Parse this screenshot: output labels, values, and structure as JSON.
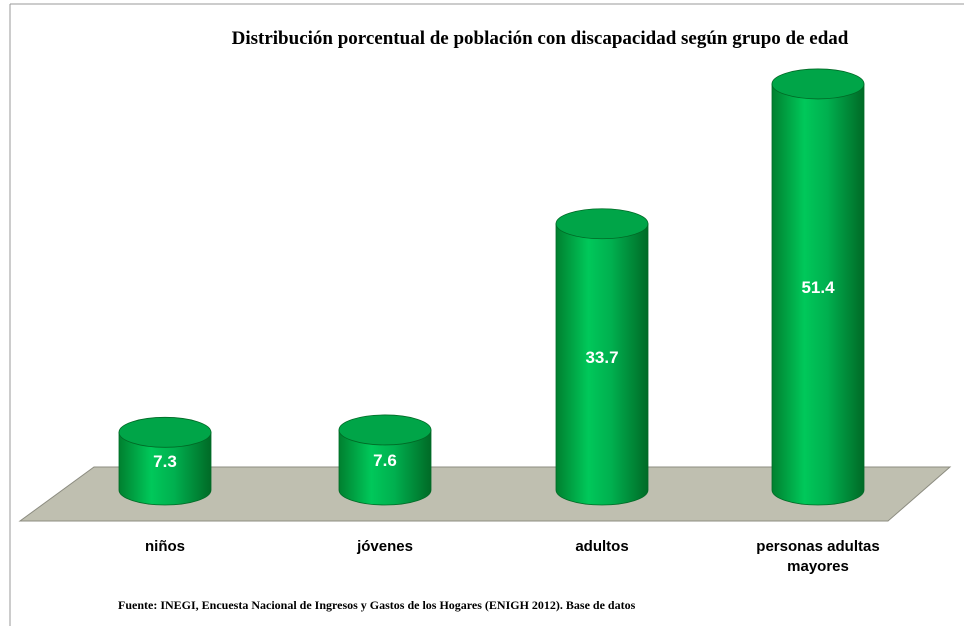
{
  "chart_data": {
    "type": "bar",
    "title": "Distribución porcentual de población con discapacidad según grupo de edad",
    "categories": [
      "niños",
      "jóvenes",
      "adultos",
      "personas adultas mayores"
    ],
    "values": [
      7.3,
      7.6,
      33.7,
      51.4
    ],
    "color": "#00b04f",
    "note": "Fuente: INEGI, Encuesta Nacional de Ingresos y Gastos de los Hogares (ENIGH 2012). Base de datos"
  }
}
